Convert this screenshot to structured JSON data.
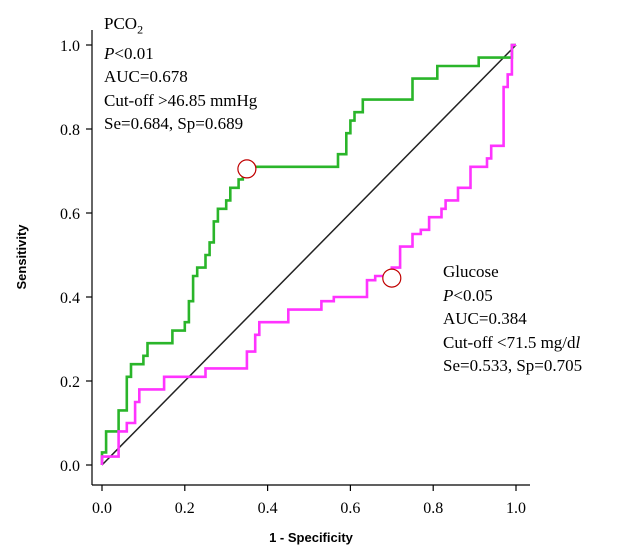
{
  "chart_data": {
    "type": "line",
    "xlabel": "1 - Specificity",
    "ylabel": "Sensitivity",
    "xlim": [
      0,
      1
    ],
    "ylim": [
      0,
      1
    ],
    "x_ticks": [
      "0.0",
      "0.2",
      "0.4",
      "0.6",
      "0.8",
      "1.0"
    ],
    "y_ticks": [
      "0.0",
      "0.2",
      "0.4",
      "0.6",
      "0.8",
      "1.0"
    ],
    "grid": false,
    "reference_line": {
      "x": [
        0,
        1
      ],
      "y": [
        0,
        1
      ],
      "color": "#222222"
    },
    "series": [
      {
        "color": "#2ab52a",
        "points": [
          [
            0,
            0
          ],
          [
            0,
            0.03
          ],
          [
            0.01,
            0.03
          ],
          [
            0.01,
            0.05
          ],
          [
            0.01,
            0.08
          ],
          [
            0.04,
            0.08
          ],
          [
            0.04,
            0.13
          ],
          [
            0.06,
            0.13
          ],
          [
            0.06,
            0.18
          ],
          [
            0.06,
            0.21
          ],
          [
            0.07,
            0.21
          ],
          [
            0.07,
            0.24
          ],
          [
            0.1,
            0.24
          ],
          [
            0.1,
            0.26
          ],
          [
            0.11,
            0.26
          ],
          [
            0.11,
            0.29
          ],
          [
            0.17,
            0.29
          ],
          [
            0.17,
            0.32
          ],
          [
            0.2,
            0.32
          ],
          [
            0.2,
            0.34
          ],
          [
            0.21,
            0.34
          ],
          [
            0.21,
            0.37
          ],
          [
            0.21,
            0.39
          ],
          [
            0.22,
            0.39
          ],
          [
            0.22,
            0.42
          ],
          [
            0.22,
            0.45
          ],
          [
            0.23,
            0.45
          ],
          [
            0.23,
            0.47
          ],
          [
            0.25,
            0.47
          ],
          [
            0.25,
            0.5
          ],
          [
            0.26,
            0.5
          ],
          [
            0.26,
            0.53
          ],
          [
            0.27,
            0.53
          ],
          [
            0.27,
            0.58
          ],
          [
            0.28,
            0.58
          ],
          [
            0.28,
            0.61
          ],
          [
            0.3,
            0.61
          ],
          [
            0.3,
            0.63
          ],
          [
            0.31,
            0.63
          ],
          [
            0.31,
            0.66
          ],
          [
            0.33,
            0.66
          ],
          [
            0.33,
            0.68
          ],
          [
            0.34,
            0.68
          ],
          [
            0.34,
            0.71
          ],
          [
            0.57,
            0.71
          ],
          [
            0.57,
            0.74
          ],
          [
            0.59,
            0.74
          ],
          [
            0.59,
            0.79
          ],
          [
            0.6,
            0.79
          ],
          [
            0.6,
            0.82
          ],
          [
            0.61,
            0.82
          ],
          [
            0.61,
            0.84
          ],
          [
            0.63,
            0.84
          ],
          [
            0.63,
            0.87
          ],
          [
            0.75,
            0.87
          ],
          [
            0.75,
            0.92
          ],
          [
            0.81,
            0.92
          ],
          [
            0.81,
            0.95
          ],
          [
            0.91,
            0.95
          ],
          [
            0.91,
            0.97
          ],
          [
            0.99,
            0.97
          ],
          [
            0.99,
            1
          ],
          [
            1,
            1
          ]
        ]
      },
      {
        "color": "#ff33ff",
        "points": [
          [
            0,
            0
          ],
          [
            0,
            0.02
          ],
          [
            0.04,
            0.02
          ],
          [
            0.04,
            0.08
          ],
          [
            0.06,
            0.08
          ],
          [
            0.06,
            0.1
          ],
          [
            0.08,
            0.1
          ],
          [
            0.08,
            0.15
          ],
          [
            0.09,
            0.15
          ],
          [
            0.09,
            0.18
          ],
          [
            0.15,
            0.18
          ],
          [
            0.15,
            0.21
          ],
          [
            0.25,
            0.21
          ],
          [
            0.25,
            0.23
          ],
          [
            0.35,
            0.23
          ],
          [
            0.35,
            0.27
          ],
          [
            0.37,
            0.27
          ],
          [
            0.37,
            0.31
          ],
          [
            0.38,
            0.31
          ],
          [
            0.38,
            0.34
          ],
          [
            0.45,
            0.34
          ],
          [
            0.45,
            0.37
          ],
          [
            0.53,
            0.37
          ],
          [
            0.53,
            0.39
          ],
          [
            0.56,
            0.39
          ],
          [
            0.56,
            0.4
          ],
          [
            0.64,
            0.4
          ],
          [
            0.64,
            0.44
          ],
          [
            0.66,
            0.44
          ],
          [
            0.66,
            0.45
          ],
          [
            0.7,
            0.45
          ],
          [
            0.7,
            0.47
          ],
          [
            0.72,
            0.47
          ],
          [
            0.72,
            0.52
          ],
          [
            0.75,
            0.52
          ],
          [
            0.75,
            0.55
          ],
          [
            0.77,
            0.55
          ],
          [
            0.77,
            0.56
          ],
          [
            0.79,
            0.56
          ],
          [
            0.79,
            0.59
          ],
          [
            0.82,
            0.59
          ],
          [
            0.82,
            0.61
          ],
          [
            0.83,
            0.61
          ],
          [
            0.83,
            0.63
          ],
          [
            0.86,
            0.63
          ],
          [
            0.86,
            0.66
          ],
          [
            0.89,
            0.66
          ],
          [
            0.89,
            0.71
          ],
          [
            0.93,
            0.71
          ],
          [
            0.93,
            0.73
          ],
          [
            0.94,
            0.73
          ],
          [
            0.94,
            0.76
          ],
          [
            0.97,
            0.76
          ],
          [
            0.97,
            0.9
          ],
          [
            0.98,
            0.9
          ],
          [
            0.98,
            0.93
          ],
          [
            0.99,
            0.93
          ],
          [
            0.99,
            1
          ],
          [
            1,
            1
          ]
        ]
      }
    ],
    "cutoff_markers": [
      {
        "x": 0.35,
        "y": 0.705,
        "color": "#c00000"
      },
      {
        "x": 0.7,
        "y": 0.445,
        "color": "#c00000"
      }
    ],
    "annotations": [
      {
        "lines": [
          {
            "name": "PCO",
            "sub": "2"
          },
          {
            "italic": "P",
            "text": "<0.01"
          },
          {
            "text": "AUC=0.678"
          },
          {
            "text": "Cut-off >46.85 mmHg"
          },
          {
            "text": "Se=0.684, Sp=0.689"
          }
        ]
      },
      {
        "lines": [
          {
            "text": "Glucose"
          },
          {
            "italic": "P",
            "text": "<0.05"
          },
          {
            "text": "AUC=0.384"
          },
          {
            "pre": "Cut-off <71.5 mg/d",
            "italic": "l"
          },
          {
            "text": "Se=0.533, Sp=0.705"
          }
        ]
      }
    ]
  }
}
